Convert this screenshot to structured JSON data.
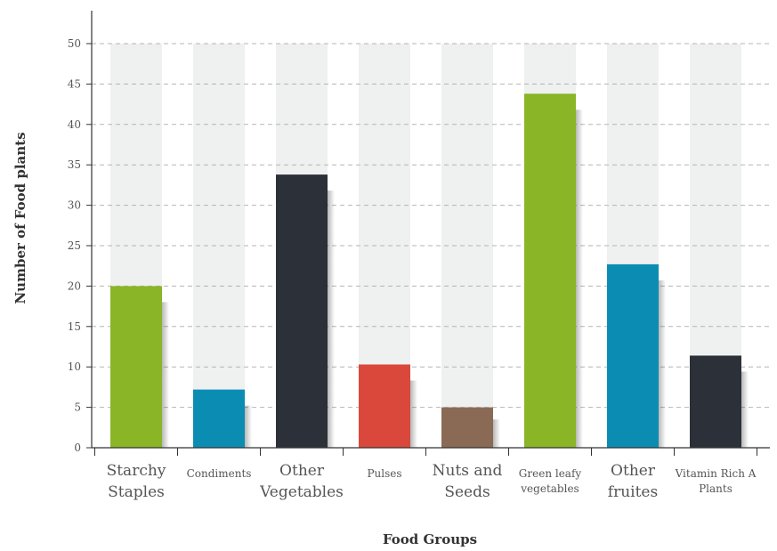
{
  "chart_data": {
    "type": "bar",
    "xlabel": "Food Groups",
    "ylabel": "Number of Food plants",
    "ylim": [
      0,
      50
    ],
    "yticks": [
      0,
      5,
      10,
      15,
      20,
      25,
      30,
      35,
      40,
      45,
      50
    ],
    "grid": "horizontal-dashed",
    "background_bars": true,
    "categories": [
      {
        "lines": [
          "Starchy",
          "Staples"
        ],
        "size": "large"
      },
      {
        "lines": [
          "Condiments"
        ],
        "size": "small"
      },
      {
        "lines": [
          "Other",
          "Vegetables"
        ],
        "size": "large"
      },
      {
        "lines": [
          "Pulses"
        ],
        "size": "small"
      },
      {
        "lines": [
          "Nuts and",
          "Seeds"
        ],
        "size": "large"
      },
      {
        "lines": [
          "Green leafy",
          "vegetables"
        ],
        "size": "small"
      },
      {
        "lines": [
          "Other",
          "fruites"
        ],
        "size": "large"
      },
      {
        "lines": [
          "Vitamin Rich A",
          "Plants"
        ],
        "size": "small"
      }
    ],
    "values": [
      20,
      7.2,
      33.8,
      10.3,
      5,
      43.8,
      22.7,
      11.4
    ],
    "colors": [
      "#8ab526",
      "#0b8db3",
      "#2c3139",
      "#d9483b",
      "#8a6a55",
      "#8ab526",
      "#0b8db3",
      "#2c3139"
    ],
    "background_bar_color": "#eff0f0",
    "grid_color": "#b5b5b5"
  }
}
